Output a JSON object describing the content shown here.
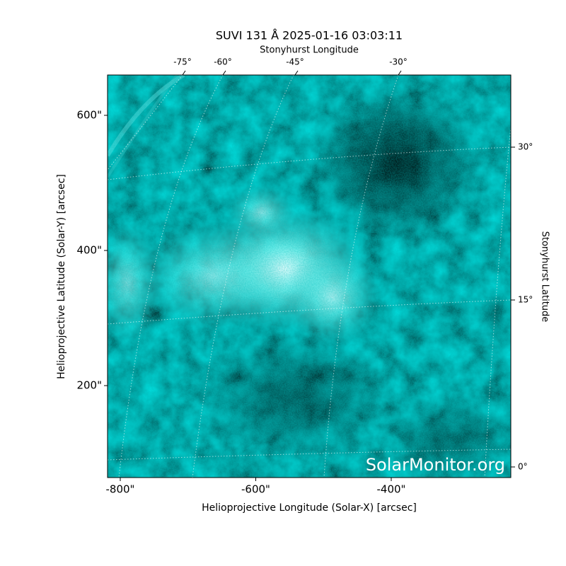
{
  "chart_data": {
    "type": "image",
    "title": "SUVI 131 Å 2025-01-16 03:03:11",
    "xlabel": "Helioprojective Longitude (Solar-X) [arcsec]",
    "ylabel": "Helioprojective Latitude (Solar-Y) [arcsec]",
    "top_label": "Stonyhurst Longitude",
    "right_label": "Stonyhurst Latitude",
    "watermark": "SolarMonitor.org",
    "colormap": "#00e5e5",
    "xlim": [
      -818.8,
      -223.5
    ],
    "ylim": [
      63.9,
      659.7
    ],
    "xticks": [
      {
        "value": -800,
        "label": "-800\""
      },
      {
        "value": -600,
        "label": "-600\""
      },
      {
        "value": -400,
        "label": "-400\""
      }
    ],
    "yticks": [
      {
        "value": 200,
        "label": "200\""
      },
      {
        "value": 400,
        "label": "400\""
      },
      {
        "value": 600,
        "label": "600\""
      }
    ],
    "top_ticks": [
      {
        "value": -75,
        "label": "-75°"
      },
      {
        "value": -60,
        "label": "-60°"
      },
      {
        "value": -45,
        "label": "-45°"
      },
      {
        "value": -30,
        "label": "-30°"
      }
    ],
    "right_ticks": [
      {
        "value": 30,
        "label": "30°"
      },
      {
        "value": 15,
        "label": "15°"
      },
      {
        "value": 0,
        "label": "0°"
      }
    ]
  }
}
